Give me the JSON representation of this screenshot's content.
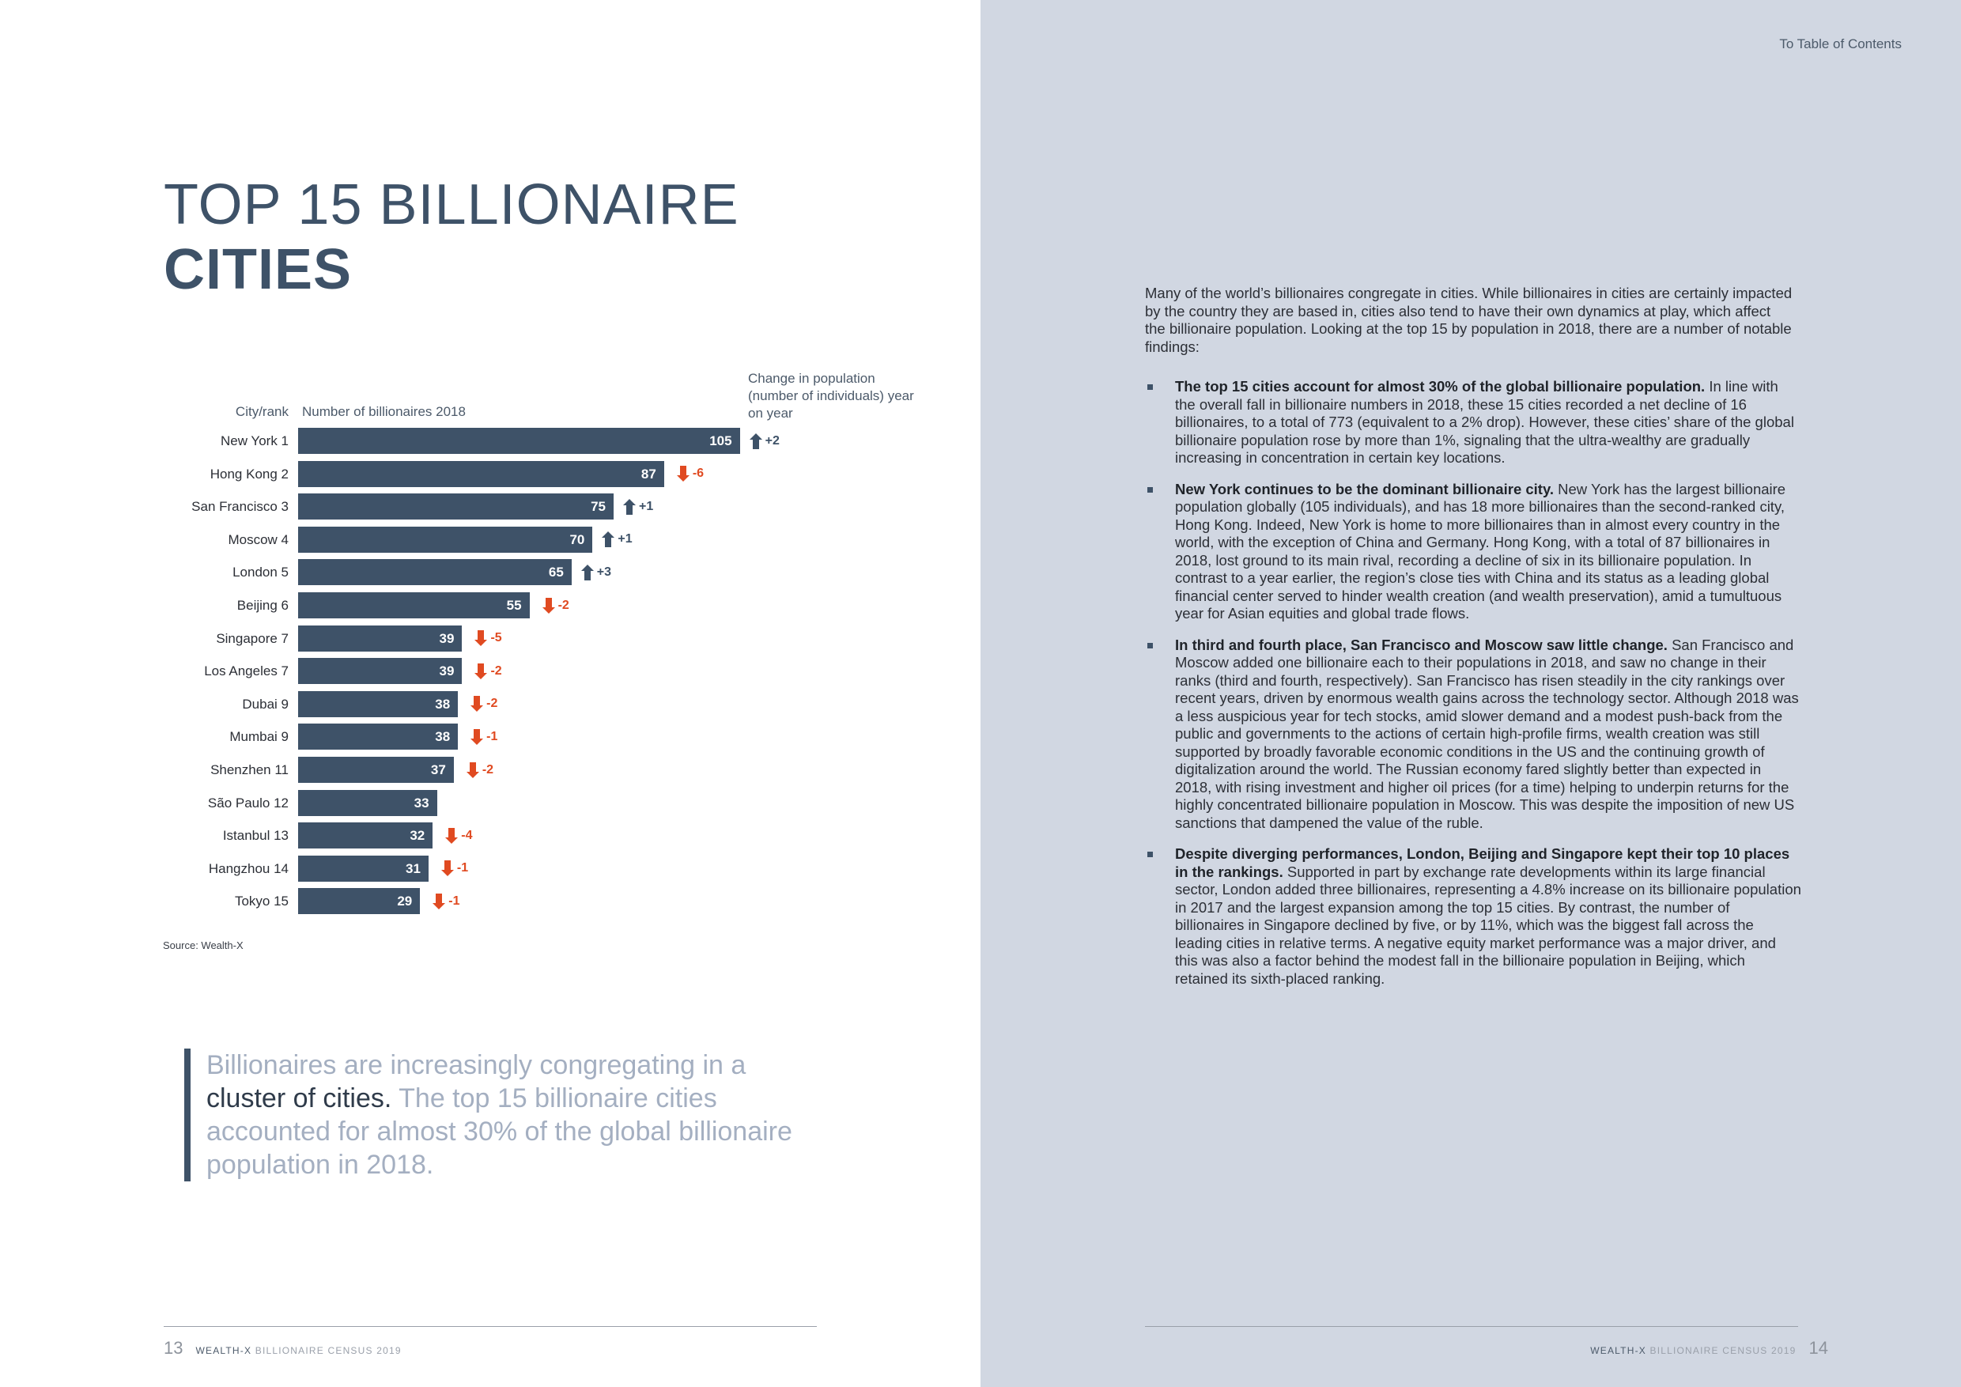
{
  "left_page": {
    "title_line1": "TOP 15 BILLIONAIRE",
    "title_line2": "CITIES",
    "chart_headers": {
      "city_rank": "City/rank",
      "number": "Number of billionaires 2018",
      "change": "Change in population (number of individuals) year on year"
    },
    "source": "Source: Wealth-X",
    "quote": {
      "part1": "Billionaires are increasingly congregating in a ",
      "highlight": "cluster of cities.",
      "part2": " The top 15 billionaire cities accounted for almost 30% of the global billionaire population in 2018."
    },
    "footer": {
      "page_number": "13",
      "brand": "WEALTH-X",
      "publication": " BILLIONAIRE CENSUS 2019"
    }
  },
  "right_page": {
    "toc_link": "To Table of Contents",
    "intro": "Many of the world’s billionaires congregate in cities. While billionaires in cities are certainly impacted by the country they are based in, cities also tend to have their own dynamics at play, which affect the billionaire population. Looking at the top 15 by population in 2018, there are a number of notable findings:",
    "bullets": [
      {
        "bold": "The top 15 cities account for almost 30% of the global billionaire population.",
        "text": " In line with the overall fall in billionaire numbers in 2018, these 15 cities recorded a net decline of 16 billionaires, to a total of 773 (equivalent to a 2% drop). However, these cities’ share of the global billionaire population rose by more than 1%, signaling that the ultra-wealthy are gradually increasing in concentration in certain key locations."
      },
      {
        "bold": "New York continues to be the dominant billionaire city.",
        "text": " New York has the largest billionaire population globally (105 individuals), and has 18 more billionaires than the second-ranked city, Hong Kong. Indeed, New York is home to more billionaires than in almost every country in the world, with the exception of China and Germany. Hong Kong, with a total of 87 billionaires in 2018, lost ground to its main rival, recording a decline of six in its billionaire population. In contrast to a year earlier, the region’s close ties with China and its status as a leading global financial center served to hinder wealth creation (and wealth preservation), amid a tumultuous year for Asian equities and global trade flows."
      },
      {
        "bold": "In third and fourth place, San Francisco and Moscow saw little change.",
        "text": " San Francisco and Moscow added one billionaire each to their populations in 2018, and saw no change in their ranks (third and fourth, respectively). San Francisco has risen steadily in the city rankings over recent years, driven by enormous wealth gains across the technology sector. Although 2018 was a less auspicious year for tech stocks, amid slower demand and a modest push-back from the public and governments to the actions of certain high-profile firms, wealth creation was still supported by broadly favorable economic conditions in the US and the continuing growth of digitalization around the world. The Russian economy fared slightly better than expected in 2018, with rising investment and higher oil prices (for a time) helping to underpin returns for the highly concentrated billionaire population in Moscow. This was despite the imposition of new US sanctions that dampened the value of the ruble."
      },
      {
        "bold": "Despite diverging performances, London, Beijing and Singapore kept their top 10 places in the rankings.",
        "text": " Supported in part by exchange rate developments within its large financial sector, London added three billionaires, representing a 4.8% increase on its billionaire population in 2017 and the largest expansion among the top 15 cities. By contrast, the number of billionaires in Singapore declined by five, or by 11%, which was the biggest fall across the leading cities in relative terms. A negative equity market performance was a major driver, and this was also a factor behind the modest fall in the billionaire population in Beijing, which retained its sixth-placed ranking."
      }
    ],
    "footer": {
      "page_number": "14",
      "brand": "WEALTH-X",
      "publication": " BILLIONAIRE CENSUS 2019"
    }
  },
  "colors": {
    "bar": "#3e5268",
    "up": "#3e5268",
    "down": "#e04a21",
    "right_bg": "#d1d7e2",
    "quote_text": "#a4afc1"
  },
  "chart_data": {
    "type": "bar",
    "orientation": "horizontal",
    "title": "TOP 15 BILLIONAIRE CITIES",
    "xlabel": "Number of billionaires 2018",
    "ylabel": "City/rank",
    "categories": [
      "New York 1",
      "Hong Kong 2",
      "San Francisco 3",
      "Moscow 4",
      "London 5",
      "Beijing 6",
      "Singapore 7",
      "Los Angeles 7",
      "Dubai 9",
      "Mumbai 9",
      "Shenzhen 11",
      "São Paulo 12",
      "Istanbul 13",
      "Hangzhou 14",
      "Tokyo 15"
    ],
    "series": [
      {
        "name": "Number of billionaires 2018",
        "values": [
          105,
          87,
          75,
          70,
          65,
          55,
          39,
          39,
          38,
          38,
          37,
          33,
          32,
          31,
          29
        ]
      },
      {
        "name": "Change in population (number of individuals) year on year",
        "values": [
          2,
          -6,
          1,
          1,
          3,
          -2,
          -5,
          -2,
          -2,
          -1,
          -2,
          null,
          -4,
          -1,
          -1
        ]
      }
    ],
    "change_labels": [
      "+2",
      "-6",
      "+1",
      "+1",
      "+3",
      "-2",
      "-5",
      "-2",
      "-2",
      "-1",
      "-2",
      "",
      "-4",
      "-1",
      "-1"
    ],
    "source": "Source: Wealth-X",
    "grid": false,
    "legend": "none"
  }
}
